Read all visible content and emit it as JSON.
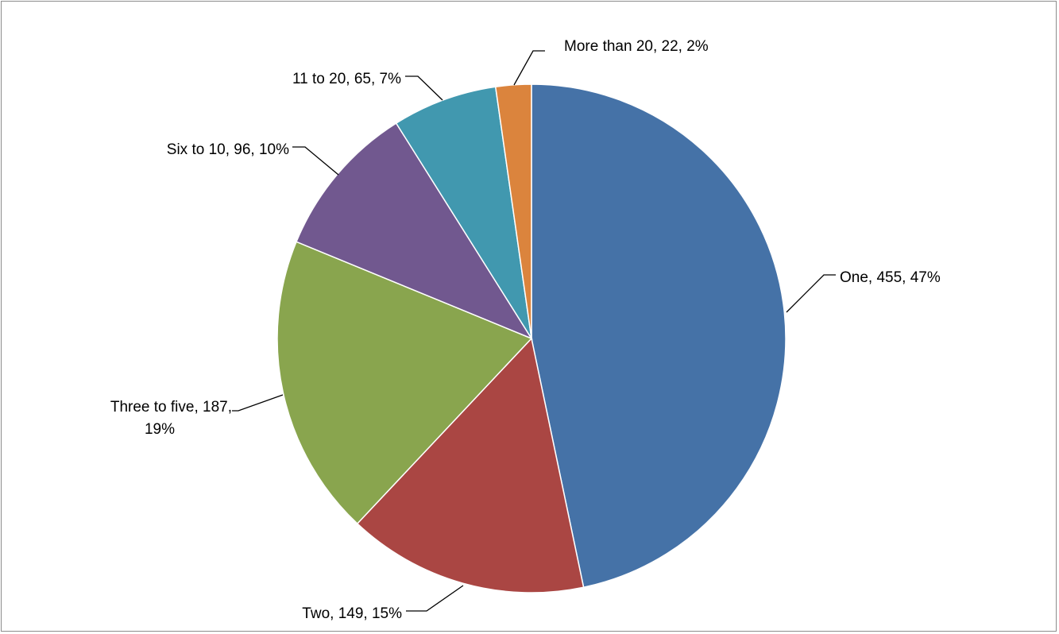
{
  "chart_data": {
    "type": "pie",
    "title": "",
    "slices": [
      {
        "name": "One",
        "value": 455,
        "percent": "47%",
        "label": "One, 455, 47%",
        "label_lines": [
          "One, 455, 47%"
        ],
        "color": "#4572A7"
      },
      {
        "name": "Two",
        "value": 149,
        "percent": "15%",
        "label": "Two, 149, 15%",
        "label_lines": [
          "Two, 149, 15%"
        ],
        "color": "#AA4643"
      },
      {
        "name": "Three to five",
        "value": 187,
        "percent": "19%",
        "label": "Three to five, 187, 19%",
        "label_lines": [
          "Three to five, 187,",
          "19%"
        ],
        "color": "#89A54E"
      },
      {
        "name": "Six to 10",
        "value": 96,
        "percent": "10%",
        "label": "Six to 10, 96, 10%",
        "label_lines": [
          "Six to 10, 96, 10%"
        ],
        "color": "#71588F"
      },
      {
        "name": "11 to 20",
        "value": 65,
        "percent": "7%",
        "label": "11 to 20, 65, 7%",
        "label_lines": [
          "11 to 20, 65, 7%"
        ],
        "color": "#4198AF"
      },
      {
        "name": "More than 20",
        "value": 22,
        "percent": "2%",
        "label": "More than 20, 22, 2%",
        "label_lines": [
          "More than 20, 22, 2%"
        ],
        "color": "#DB843D"
      }
    ],
    "legend": "none",
    "start_angle": "12 o'clock",
    "direction": "clockwise"
  }
}
